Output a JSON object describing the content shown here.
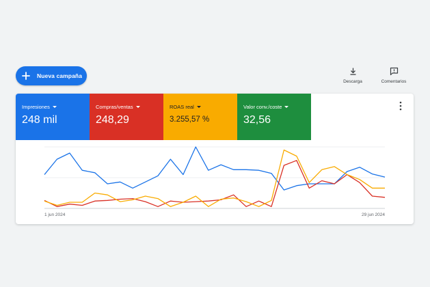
{
  "toolbar": {
    "new_campaign_label": "Nueva campaña",
    "download_label": "Descarga",
    "comments_label": "Comentarios"
  },
  "metrics": [
    {
      "name": "Impresiones",
      "value": "248 mil",
      "color": "#1a73e8"
    },
    {
      "name": "Compras/ventas",
      "value": "248,29",
      "color": "#d93025"
    },
    {
      "name": "ROAS real",
      "value": "3.255,57 %",
      "color": "#f9ab00"
    },
    {
      "name": "Valor conv./coste",
      "value": "32,56",
      "color": "#1e8e3e"
    }
  ],
  "chart_data": {
    "type": "line",
    "x_start_label": "1 jun 2024",
    "x_end_label": "29 jun 2024",
    "grid": true,
    "series": [
      {
        "color": "#1a73e8",
        "values": [
          55,
          80,
          90,
          62,
          58,
          40,
          43,
          33,
          43,
          53,
          80,
          55,
          100,
          62,
          71,
          63,
          63,
          62,
          57,
          30,
          37,
          40,
          40,
          40,
          60,
          67,
          56,
          51
        ]
      },
      {
        "color": "#d93025",
        "values": [
          13,
          3,
          7,
          5,
          12,
          13,
          15,
          16,
          11,
          3,
          12,
          10,
          11,
          12,
          14,
          22,
          3,
          12,
          3,
          70,
          78,
          33,
          45,
          40,
          55,
          42,
          20,
          18
        ]
      },
      {
        "color": "#f9ab00",
        "values": [
          12,
          5,
          10,
          10,
          25,
          22,
          11,
          14,
          20,
          16,
          3,
          10,
          20,
          3,
          15,
          17,
          11,
          3,
          13,
          95,
          85,
          42,
          63,
          68,
          55,
          47,
          33,
          33
        ]
      }
    ]
  }
}
